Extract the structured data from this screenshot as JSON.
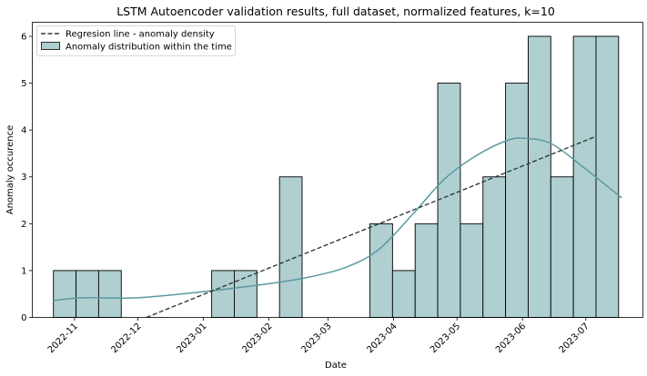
{
  "chart_data": {
    "type": "bar",
    "title": "LSTM Autoencoder validation results, full dataset, normalized features, k=10",
    "xlabel": "Date",
    "ylabel": "Anomaly occurence",
    "x_ticks": [
      "2022-11",
      "2022-12",
      "2023-01",
      "2023-02",
      "2023-03",
      "2023-04",
      "2023-05",
      "2023-06",
      "2023-07"
    ],
    "y_ticks": [
      0,
      1,
      2,
      3,
      4,
      5,
      6
    ],
    "xlim": [
      "2022-10-12",
      "2023-07-28"
    ],
    "ylim": [
      0,
      6.3
    ],
    "bins": {
      "start": "2022-10-22",
      "bin_width_days": 10.7,
      "counts": [
        1,
        1,
        1,
        0,
        0,
        0,
        0,
        1,
        1,
        0,
        3,
        0,
        0,
        0,
        2,
        1,
        2,
        5,
        2,
        3,
        5,
        6,
        3,
        6,
        6
      ]
    },
    "regression_line": {
      "start": {
        "x": "2022-12-05",
        "y": 0.0
      },
      "end": {
        "x": "2023-07-05",
        "y": 3.85
      }
    },
    "kde_curve": {
      "x": [
        "2022-10-22",
        "2022-11-05",
        "2022-12-01",
        "2023-01-01",
        "2023-02-01",
        "2023-02-20",
        "2023-03-10",
        "2023-03-25",
        "2023-04-10",
        "2023-04-25",
        "2023-05-10",
        "2023-05-25",
        "2023-06-03",
        "2023-06-15",
        "2023-06-30",
        "2023-07-18"
      ],
      "y": [
        0.36,
        0.42,
        0.42,
        0.55,
        0.72,
        0.86,
        1.08,
        1.45,
        2.2,
        2.95,
        3.45,
        3.78,
        3.82,
        3.7,
        3.2,
        2.55
      ]
    },
    "legend": {
      "position": "top-left",
      "entries": [
        {
          "label": "Regresion line - anomaly density",
          "style": "dashed-line"
        },
        {
          "label": "Anomaly distribution within the time",
          "style": "bar"
        }
      ]
    },
    "colors": {
      "bar_fill": "#afcfd1",
      "bar_edge": "#000000",
      "kde_line": "#5b9aa0",
      "regression_line": "#2f3f3c"
    },
    "grid": false
  }
}
